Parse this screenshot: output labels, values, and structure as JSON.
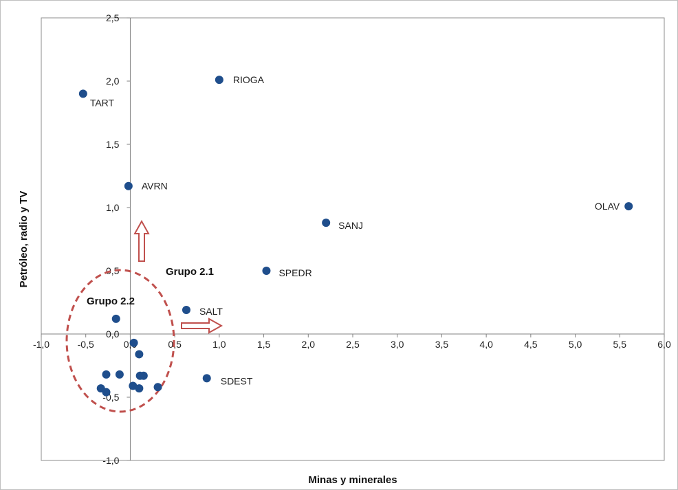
{
  "chart_data": {
    "type": "scatter",
    "title": "",
    "xlabel": "Minas y minerales",
    "ylabel": "Petróleo, radio y TV",
    "xlim": [
      -1.0,
      6.0
    ],
    "ylim": [
      -1.0,
      2.5
    ],
    "x_ticks": [
      "-1,0",
      "-0,5",
      "0,0",
      "0,5",
      "1,0",
      "1,5",
      "2,0",
      "2,5",
      "3,0",
      "3,5",
      "4,0",
      "4,5",
      "5,0",
      "5,5",
      "6,0"
    ],
    "y_ticks": [
      "-1,0",
      "-0,5",
      "0,0",
      "0,5",
      "1,0",
      "1,5",
      "2,0",
      "2,5"
    ],
    "grid": false,
    "point_color": "#1f4e8c",
    "annotation_color": "#c0504d",
    "labeled_points": [
      {
        "label": "TART",
        "x": -0.53,
        "y": 1.9
      },
      {
        "label": "RIOGA",
        "x": 1.0,
        "y": 2.01
      },
      {
        "label": "AVRN",
        "x": -0.02,
        "y": 1.17
      },
      {
        "label": "OLAV",
        "x": 5.6,
        "y": 1.01
      },
      {
        "label": "SANJ",
        "x": 2.2,
        "y": 0.88
      },
      {
        "label": "SPEDR",
        "x": 1.53,
        "y": 0.5
      },
      {
        "label": "SALT",
        "x": 0.63,
        "y": 0.19
      },
      {
        "label": "SDEST",
        "x": 0.86,
        "y": -0.35
      }
    ],
    "unlabeled_points": [
      {
        "x": -0.16,
        "y": 0.12
      },
      {
        "x": 0.04,
        "y": -0.07
      },
      {
        "x": 0.1,
        "y": -0.16
      },
      {
        "x": -0.27,
        "y": -0.32
      },
      {
        "x": -0.12,
        "y": -0.32
      },
      {
        "x": 0.11,
        "y": -0.33
      },
      {
        "x": 0.15,
        "y": -0.33
      },
      {
        "x": -0.33,
        "y": -0.43
      },
      {
        "x": -0.27,
        "y": -0.46
      },
      {
        "x": 0.03,
        "y": -0.41
      },
      {
        "x": 0.1,
        "y": -0.43
      },
      {
        "x": 0.31,
        "y": -0.42
      }
    ],
    "annotations": {
      "group_2_1": "Grupo 2.1",
      "group_2_2": "Grupo 2.2"
    }
  }
}
